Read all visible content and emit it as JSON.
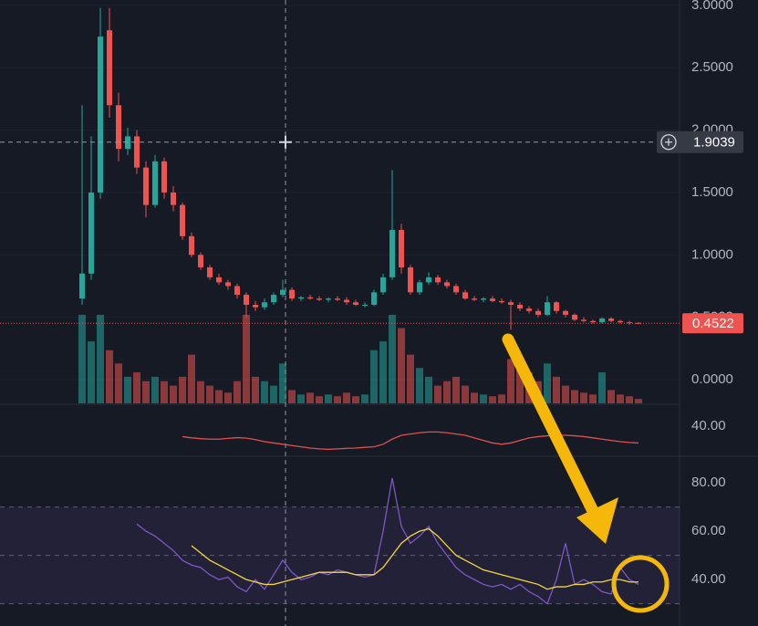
{
  "chart_data": {
    "type": "candlestick",
    "up_color": "#26a69a",
    "down_color": "#ef5350",
    "candles": [
      [
        0.65,
        2.2,
        0.6,
        0.85
      ],
      [
        0.85,
        1.95,
        0.8,
        1.5
      ],
      [
        1.5,
        2.98,
        1.45,
        2.75
      ],
      [
        2.8,
        2.98,
        2.1,
        2.2
      ],
      [
        2.2,
        2.3,
        1.75,
        1.85
      ],
      [
        1.85,
        2.02,
        1.8,
        1.95
      ],
      [
        1.95,
        2.0,
        1.65,
        1.7
      ],
      [
        1.7,
        1.75,
        1.3,
        1.4
      ],
      [
        1.4,
        1.8,
        1.38,
        1.75
      ],
      [
        1.75,
        1.78,
        1.45,
        1.5
      ],
      [
        1.5,
        1.55,
        1.35,
        1.4
      ],
      [
        1.4,
        1.42,
        1.12,
        1.15
      ],
      [
        1.15,
        1.18,
        0.98,
        1.0
      ],
      [
        1.0,
        1.02,
        0.88,
        0.9
      ],
      [
        0.9,
        0.92,
        0.8,
        0.82
      ],
      [
        0.82,
        0.85,
        0.76,
        0.78
      ],
      [
        0.78,
        0.8,
        0.72,
        0.75
      ],
      [
        0.75,
        0.77,
        0.65,
        0.68
      ],
      [
        0.68,
        0.7,
        0.5,
        0.6
      ],
      [
        0.6,
        0.63,
        0.55,
        0.58
      ],
      [
        0.58,
        0.65,
        0.56,
        0.62
      ],
      [
        0.62,
        0.7,
        0.6,
        0.68
      ],
      [
        0.68,
        0.8,
        0.66,
        0.72
      ],
      [
        0.72,
        0.74,
        0.63,
        0.65
      ],
      [
        0.65,
        0.67,
        0.63,
        0.66
      ],
      [
        0.66,
        0.68,
        0.64,
        0.65
      ],
      [
        0.65,
        0.67,
        0.63,
        0.64
      ],
      [
        0.64,
        0.66,
        0.62,
        0.65
      ],
      [
        0.65,
        0.67,
        0.63,
        0.64
      ],
      [
        0.64,
        0.66,
        0.6,
        0.62
      ],
      [
        0.62,
        0.64,
        0.59,
        0.6
      ],
      [
        0.6,
        0.62,
        0.58,
        0.6
      ],
      [
        0.6,
        0.72,
        0.59,
        0.7
      ],
      [
        0.7,
        0.85,
        0.68,
        0.82
      ],
      [
        0.82,
        1.68,
        0.8,
        1.2
      ],
      [
        1.2,
        1.25,
        0.85,
        0.9
      ],
      [
        0.9,
        0.92,
        0.68,
        0.7
      ],
      [
        0.7,
        0.8,
        0.68,
        0.78
      ],
      [
        0.78,
        0.86,
        0.76,
        0.82
      ],
      [
        0.82,
        0.84,
        0.76,
        0.78
      ],
      [
        0.78,
        0.8,
        0.73,
        0.75
      ],
      [
        0.75,
        0.77,
        0.68,
        0.7
      ],
      [
        0.7,
        0.72,
        0.64,
        0.65
      ],
      [
        0.65,
        0.67,
        0.63,
        0.64
      ],
      [
        0.64,
        0.66,
        0.62,
        0.65
      ],
      [
        0.65,
        0.67,
        0.62,
        0.63
      ],
      [
        0.63,
        0.65,
        0.61,
        0.62
      ],
      [
        0.62,
        0.64,
        0.4,
        0.6
      ],
      [
        0.6,
        0.62,
        0.55,
        0.57
      ],
      [
        0.57,
        0.59,
        0.53,
        0.55
      ],
      [
        0.55,
        0.57,
        0.5,
        0.52
      ],
      [
        0.52,
        0.67,
        0.51,
        0.62
      ],
      [
        0.62,
        0.63,
        0.53,
        0.55
      ],
      [
        0.55,
        0.56,
        0.5,
        0.52
      ],
      [
        0.52,
        0.53,
        0.47,
        0.48
      ],
      [
        0.48,
        0.5,
        0.46,
        0.47
      ],
      [
        0.47,
        0.48,
        0.45,
        0.46
      ],
      [
        0.46,
        0.5,
        0.45,
        0.49
      ],
      [
        0.49,
        0.5,
        0.46,
        0.47
      ],
      [
        0.47,
        0.48,
        0.45,
        0.46
      ],
      [
        0.46,
        0.47,
        0.44,
        0.455
      ],
      [
        0.455,
        0.46,
        0.445,
        0.4522
      ]
    ],
    "volume": [
      100,
      70,
      100,
      60,
      45,
      30,
      35,
      25,
      30,
      25,
      20,
      30,
      55,
      25,
      20,
      15,
      12,
      25,
      100,
      30,
      25,
      20,
      45,
      15,
      10,
      12,
      8,
      10,
      8,
      12,
      8,
      10,
      60,
      70,
      100,
      85,
      55,
      40,
      30,
      20,
      25,
      30,
      20,
      12,
      10,
      8,
      10,
      50,
      40,
      35,
      25,
      45,
      30,
      20,
      15,
      12,
      10,
      35,
      15,
      10,
      8,
      5
    ],
    "ylim": [
      -0.19,
      3.043
    ],
    "yticks": [
      {
        "value": 0,
        "label": "0.0000"
      },
      {
        "value": 0.5,
        "label": "0.5000"
      },
      {
        "value": 1,
        "label": "1.0000"
      },
      {
        "value": 1.5,
        "label": "1.5000"
      },
      {
        "value": 2,
        "label": "2.0000"
      },
      {
        "value": 2.5,
        "label": "2.5000"
      },
      {
        "value": 3,
        "label": "3.0000"
      }
    ],
    "last_price": {
      "value": 0.4522,
      "label": "0.4522"
    },
    "crosshair": {
      "value": 1.9039,
      "label": "1.9039"
    },
    "indicator": {
      "color": "#e0504f",
      "ylim": [
        28.3,
        49
      ],
      "yticks": [
        {
          "value": 40,
          "label": "40.00"
        }
      ],
      "values": [
        null,
        null,
        null,
        null,
        null,
        null,
        null,
        null,
        null,
        null,
        null,
        36,
        35.5,
        35.2,
        35,
        35,
        35.3,
        35.6,
        35.4,
        34.8,
        34,
        33.5,
        33,
        32.5,
        32,
        31.5,
        31.2,
        31,
        31.2,
        31.4,
        31.5,
        31.8,
        32,
        33,
        35,
        36.5,
        37,
        37.5,
        37.8,
        37.8,
        37.5,
        37,
        36.5,
        35.5,
        34.5,
        33.5,
        33,
        33.5,
        34.5,
        35.5,
        36,
        36.3,
        36.5,
        36.5,
        36.3,
        36,
        35.5,
        35,
        34.5,
        34,
        33.7,
        33.5
      ]
    },
    "rsi": {
      "ylim": [
        20.8,
        91
      ],
      "levels": [
        30,
        50,
        70
      ],
      "yticks": [
        {
          "value": 40,
          "label": "40.00"
        },
        {
          "value": 60,
          "label": "60.00"
        },
        {
          "value": 80,
          "label": "80.00"
        }
      ],
      "series": [
        {
          "color": "#7e57c2",
          "values": [
            null,
            null,
            null,
            null,
            null,
            null,
            63,
            60,
            58,
            55,
            52,
            48,
            46,
            45,
            42,
            40,
            41,
            37,
            35,
            40,
            36,
            42,
            48,
            43,
            40,
            41,
            43,
            42,
            44,
            43,
            42,
            41,
            42,
            60,
            82,
            62,
            55,
            58,
            62,
            55,
            50,
            45,
            42,
            40,
            38,
            37,
            38,
            36,
            38,
            35,
            33,
            30,
            40,
            55,
            38,
            40,
            38,
            35,
            34,
            45,
            40,
            38
          ]
        },
        {
          "color": "#f5d63d",
          "values": [
            null,
            null,
            null,
            null,
            null,
            null,
            null,
            null,
            null,
            null,
            null,
            null,
            54,
            51,
            48,
            46,
            44,
            42,
            40,
            39,
            38,
            38,
            39,
            40,
            41,
            42,
            43,
            43,
            43,
            43,
            42,
            42,
            42,
            45,
            50,
            55,
            58,
            60,
            61,
            58,
            54,
            50,
            48,
            46,
            44,
            43,
            42,
            41,
            40,
            39,
            38,
            36,
            37,
            37,
            38,
            38,
            39,
            39,
            40,
            40,
            39,
            39
          ]
        }
      ]
    }
  }
}
